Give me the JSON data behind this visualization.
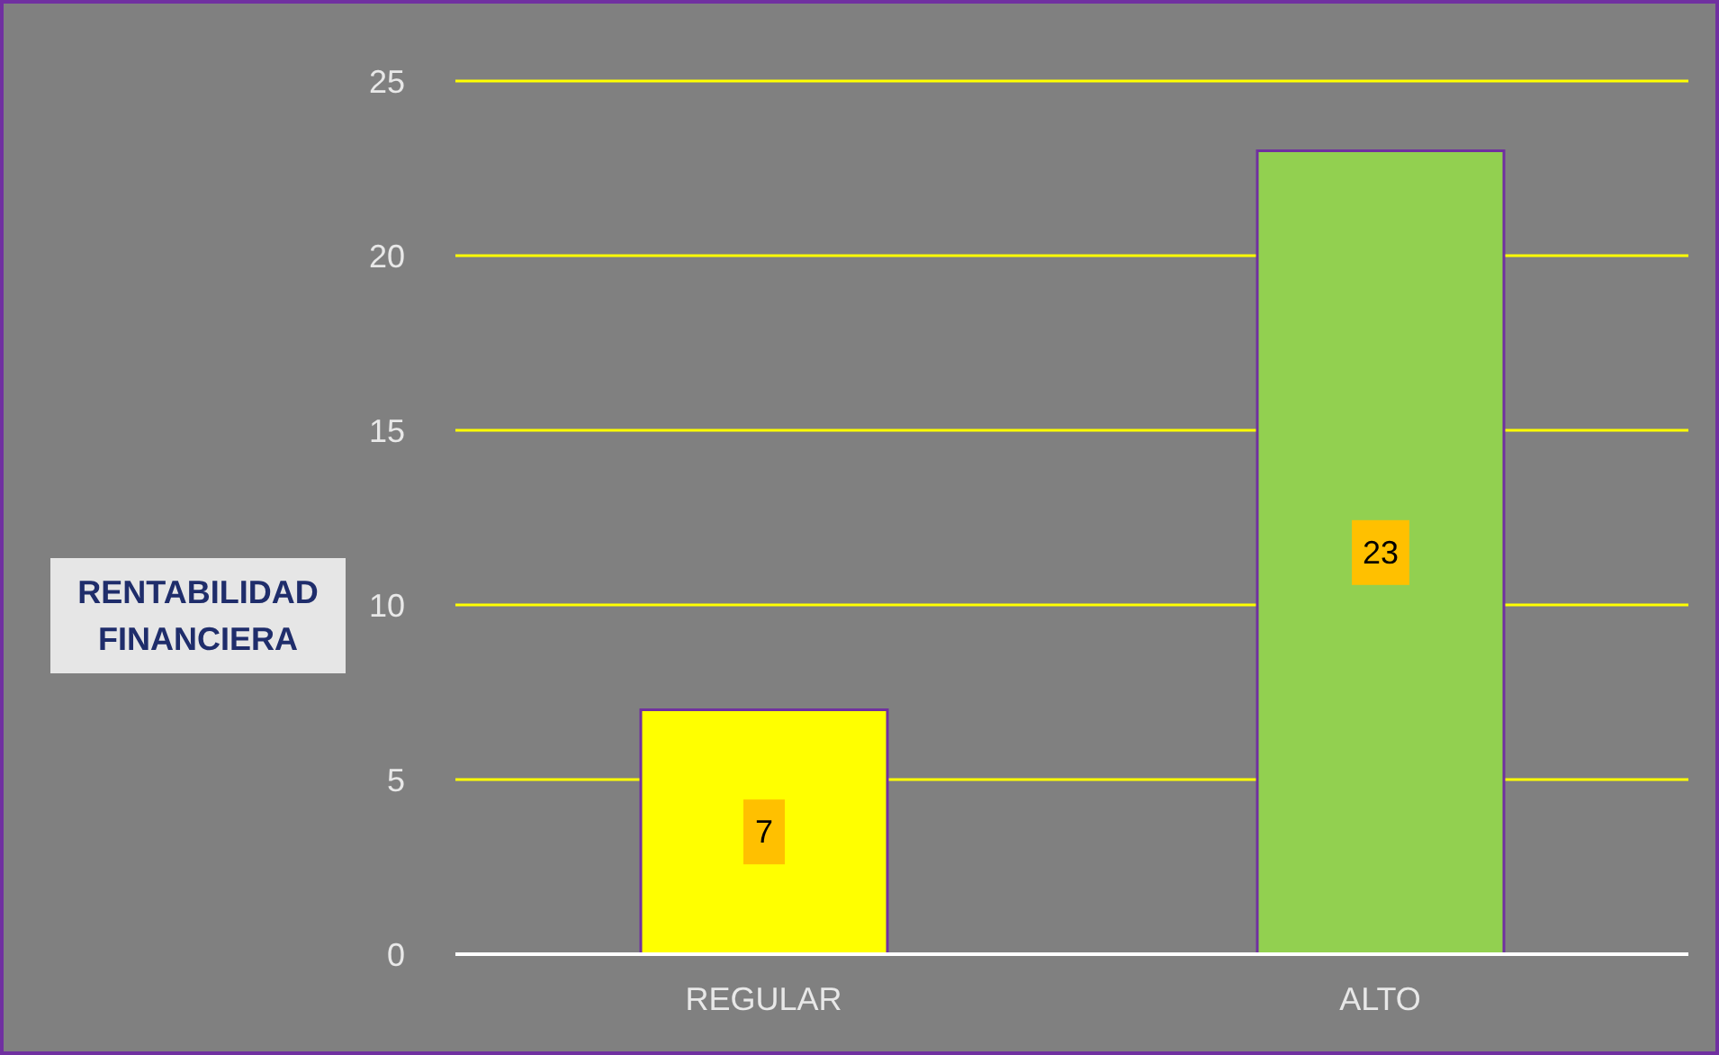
{
  "chart_data": {
    "type": "bar",
    "ylabel": "RENTABILIDAD FINANCIERA",
    "categories": [
      "REGULAR",
      "ALTO"
    ],
    "values": [
      7,
      23
    ],
    "colors": [
      "#ffff00",
      "#92d050"
    ],
    "ylim": [
      0,
      25
    ],
    "yticks": [
      0,
      5,
      10,
      15,
      20,
      25
    ],
    "grid": "y",
    "data_labels": true
  }
}
